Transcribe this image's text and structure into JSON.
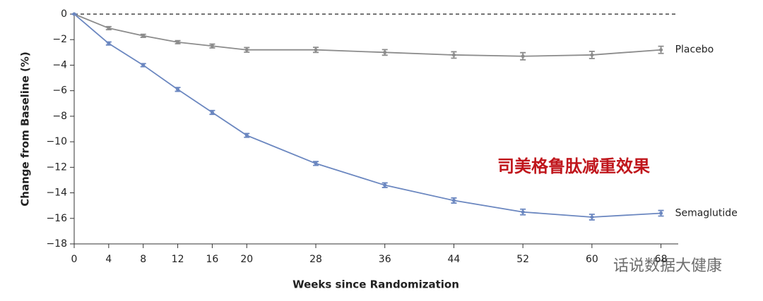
{
  "chart_data": {
    "type": "line",
    "x_label": "Weeks since Randomization",
    "y_label": "Change from Baseline (%)",
    "annotation": "司美格鲁肽减重效果",
    "watermark": "话说数据大健康",
    "x": [
      0,
      4,
      8,
      12,
      16,
      20,
      28,
      36,
      44,
      52,
      60,
      68
    ],
    "series": [
      {
        "name": "Placebo",
        "color": "#8c8c8c",
        "values": [
          0,
          -1.1,
          -1.7,
          -2.2,
          -2.5,
          -2.8,
          -2.8,
          -3.0,
          -3.2,
          -3.3,
          -3.2,
          -2.8
        ],
        "errors": [
          0,
          0.12,
          0.12,
          0.12,
          0.15,
          0.18,
          0.2,
          0.22,
          0.25,
          0.28,
          0.28,
          0.28
        ]
      },
      {
        "name": "Semaglutide",
        "color": "#6b87c0",
        "values": [
          0,
          -2.3,
          -4.0,
          -5.9,
          -7.7,
          -9.5,
          -11.7,
          -13.4,
          -14.6,
          -15.5,
          -15.9,
          -15.6
        ],
        "errors": [
          0,
          0.12,
          0.12,
          0.15,
          0.15,
          0.15,
          0.15,
          0.18,
          0.2,
          0.22,
          0.22,
          0.22
        ]
      }
    ],
    "xlim": [
      0,
      70
    ],
    "xticks": [
      0,
      4,
      8,
      12,
      16,
      20,
      28,
      36,
      44,
      52,
      60,
      68
    ],
    "ylim": [
      -18,
      0
    ],
    "yticks": [
      {
        "value": 0,
        "label": "0"
      },
      {
        "value": -2,
        "label": "−2"
      },
      {
        "value": -4,
        "label": "−4"
      },
      {
        "value": -6,
        "label": "−6"
      },
      {
        "value": -8,
        "label": "−8"
      },
      {
        "value": -10,
        "label": "−10"
      },
      {
        "value": -12,
        "label": "−12"
      },
      {
        "value": -14,
        "label": "−14"
      },
      {
        "value": -16,
        "label": "−16"
      },
      {
        "value": -18,
        "label": "−18"
      }
    ],
    "zero_line": true
  }
}
